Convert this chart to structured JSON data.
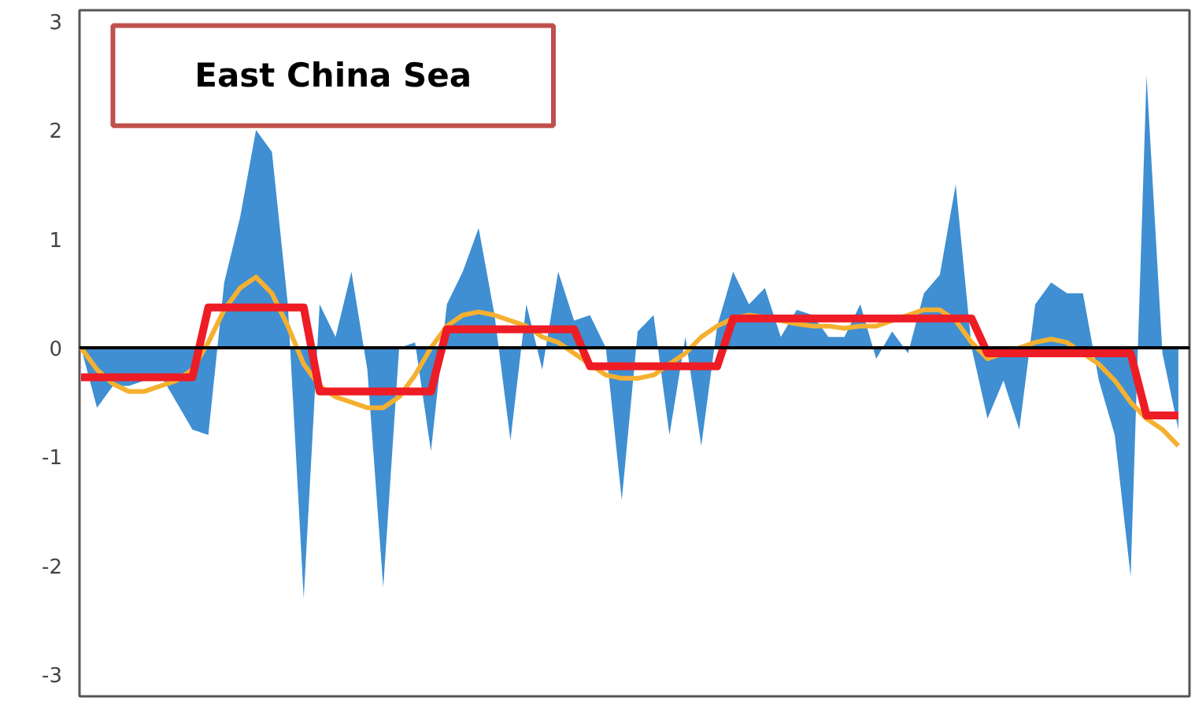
{
  "chart_data": {
    "type": "area",
    "title": "East China Sea",
    "categories": [
      null,
      null,
      null,
      null,
      null,
      null,
      null,
      null,
      null,
      null,
      null,
      null,
      null,
      null,
      null,
      null,
      null,
      null,
      null,
      null,
      null,
      null,
      null,
      null,
      null,
      null,
      null,
      null,
      null,
      null,
      null,
      null,
      null,
      null,
      null,
      null,
      null,
      null,
      null,
      null,
      null,
      null,
      null,
      null,
      null,
      null,
      null,
      null,
      null,
      null,
      null,
      null,
      null,
      null,
      null,
      null,
      null,
      null,
      null,
      null,
      null,
      null,
      null,
      null,
      null,
      null,
      null,
      null,
      null,
      null
    ],
    "series": [
      {
        "color": "#3f8fd2",
        "values": [
          0,
          -0.55,
          -0.35,
          -0.35,
          -0.3,
          -0.25,
          -0.5,
          -0.75,
          -0.8,
          0.6,
          1.2,
          2.0,
          1.8,
          0.4,
          -2.3,
          0.4,
          0.1,
          0.7,
          -0.2,
          -2.2,
          0.0,
          0.05,
          -0.95,
          0.4,
          0.7,
          1.1,
          0.3,
          -0.85,
          0.4,
          -0.2,
          0.7,
          0.25,
          0.3,
          0.0,
          -1.4,
          0.15,
          0.3,
          -0.8,
          0.1,
          -0.9,
          0.2,
          0.7,
          0.4,
          0.55,
          0.1,
          0.35,
          0.3,
          0.1,
          0.1,
          0.4,
          -0.1,
          0.15,
          -0.05,
          0.5,
          0.67,
          1.5,
          0.0,
          -0.65,
          -0.3,
          -0.75,
          0.4,
          0.6,
          0.5,
          0.5,
          -0.3,
          -0.8,
          -2.1,
          2.5,
          -0.05,
          -0.75
        ]
      },
      {
        "type": "line",
        "color": "#f5b030",
        "values": [
          0,
          -0.2,
          -0.33,
          -0.4,
          -0.4,
          -0.35,
          -0.3,
          -0.2,
          0.05,
          0.35,
          0.55,
          0.65,
          0.5,
          0.2,
          -0.15,
          -0.35,
          -0.45,
          -0.5,
          -0.55,
          -0.55,
          -0.45,
          -0.25,
          0.0,
          0.2,
          0.3,
          0.33,
          0.3,
          0.25,
          0.2,
          0.1,
          0.05,
          -0.05,
          -0.15,
          -0.25,
          -0.28,
          -0.28,
          -0.25,
          -0.15,
          -0.05,
          0.1,
          0.2,
          0.27,
          0.3,
          0.28,
          0.25,
          0.22,
          0.2,
          0.2,
          0.18,
          0.2,
          0.2,
          0.25,
          0.3,
          0.35,
          0.35,
          0.25,
          0.05,
          -0.1,
          -0.05,
          0.0,
          0.05,
          0.08,
          0.05,
          -0.05,
          -0.15,
          -0.3,
          -0.5,
          -0.65,
          -0.75,
          -0.9
        ]
      },
      {
        "type": "line",
        "color": "#ee1c25",
        "values": [
          -0.27,
          -0.27,
          -0.27,
          -0.27,
          -0.27,
          -0.27,
          -0.27,
          -0.27,
          0.37,
          0.37,
          0.37,
          0.37,
          0.37,
          0.37,
          0.37,
          -0.4,
          -0.4,
          -0.4,
          -0.4,
          -0.4,
          -0.4,
          -0.4,
          -0.4,
          0.17,
          0.17,
          0.17,
          0.17,
          0.17,
          0.17,
          0.17,
          0.17,
          0.17,
          -0.17,
          -0.17,
          -0.17,
          -0.17,
          -0.17,
          -0.17,
          -0.17,
          -0.17,
          -0.17,
          0.27,
          0.27,
          0.27,
          0.27,
          0.27,
          0.27,
          0.27,
          0.27,
          0.27,
          0.27,
          0.27,
          0.27,
          0.27,
          0.27,
          0.27,
          0.27,
          -0.05,
          -0.05,
          -0.05,
          -0.05,
          -0.05,
          -0.05,
          -0.05,
          -0.05,
          -0.05,
          -0.05,
          -0.62,
          -0.62,
          -0.62
        ]
      }
    ],
    "ylim": [
      -3.2,
      3.1
    ],
    "yticks": [
      -3,
      -2,
      -1,
      0,
      1,
      2,
      3
    ],
    "grid": false,
    "tick_labels": "y",
    "ref_lines": [
      {
        "axis": "y",
        "value": 0,
        "color": "#000000"
      }
    ]
  }
}
